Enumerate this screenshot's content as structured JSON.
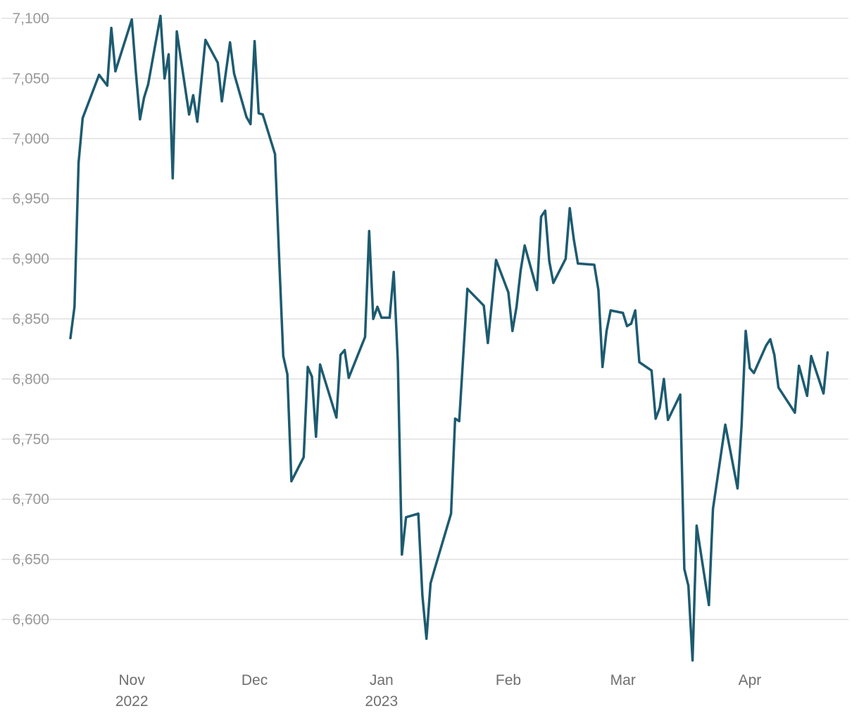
{
  "chart_data": {
    "type": "line",
    "title": "",
    "xlabel": "",
    "ylabel": "",
    "ylim": [
      6565,
      7100
    ],
    "y_ticks": [
      "6,600",
      "6,650",
      "6,700",
      "6,750",
      "6,800",
      "6,850",
      "6,900",
      "6,950",
      "7,000",
      "7,050",
      "7,100"
    ],
    "x_ticks": [
      {
        "date": "2022-11-01",
        "line1": "Nov",
        "line2": "2022"
      },
      {
        "date": "2022-12-01",
        "line1": "Dec",
        "line2": ""
      },
      {
        "date": "2023-01-01",
        "line1": "Jan",
        "line2": "2023"
      },
      {
        "date": "2023-02-01",
        "line1": "Feb",
        "line2": ""
      },
      {
        "date": "2023-03-01",
        "line1": "Mar",
        "line2": ""
      },
      {
        "date": "2023-04-01",
        "line1": "Apr",
        "line2": ""
      }
    ],
    "x_range": [
      "2022-10-17",
      "2023-04-22"
    ],
    "grid": "horizontal",
    "line_color": "#1d5b70",
    "series": [
      {
        "points": [
          [
            "2022-10-17",
            6834
          ],
          [
            "2022-10-18",
            6860
          ],
          [
            "2022-10-19",
            6980
          ],
          [
            "2022-10-20",
            7017
          ],
          [
            "2022-10-24",
            7053
          ],
          [
            "2022-10-26",
            7044
          ],
          [
            "2022-10-27",
            7092
          ],
          [
            "2022-10-28",
            7056
          ],
          [
            "2022-11-01",
            7099
          ],
          [
            "2022-11-02",
            7055
          ],
          [
            "2022-11-03",
            7016
          ],
          [
            "2022-11-04",
            7034
          ],
          [
            "2022-11-05",
            7045
          ],
          [
            "2022-11-08",
            7102
          ],
          [
            "2022-11-09",
            7050
          ],
          [
            "2022-11-10",
            7070
          ],
          [
            "2022-11-11",
            6967
          ],
          [
            "2022-11-12",
            7089
          ],
          [
            "2022-11-15",
            7020
          ],
          [
            "2022-11-16",
            7036
          ],
          [
            "2022-11-17",
            7014
          ],
          [
            "2022-11-19",
            7082
          ],
          [
            "2022-11-22",
            7063
          ],
          [
            "2022-11-23",
            7031
          ],
          [
            "2022-11-25",
            7080
          ],
          [
            "2022-11-26",
            7054
          ],
          [
            "2022-11-29",
            7018
          ],
          [
            "2022-11-30",
            7012
          ],
          [
            "2022-12-01",
            7081
          ],
          [
            "2022-12-02",
            7021
          ],
          [
            "2022-12-03",
            7020
          ],
          [
            "2022-12-06",
            6987
          ],
          [
            "2022-12-07",
            6900
          ],
          [
            "2022-12-08",
            6819
          ],
          [
            "2022-12-09",
            6804
          ],
          [
            "2022-12-10",
            6715
          ],
          [
            "2022-12-13",
            6735
          ],
          [
            "2022-12-14",
            6810
          ],
          [
            "2022-12-15",
            6802
          ],
          [
            "2022-12-16",
            6752
          ],
          [
            "2022-12-17",
            6812
          ],
          [
            "2022-12-21",
            6768
          ],
          [
            "2022-12-22",
            6820
          ],
          [
            "2022-12-23",
            6824
          ],
          [
            "2022-12-24",
            6801
          ],
          [
            "2022-12-28",
            6835
          ],
          [
            "2022-12-29",
            6923
          ],
          [
            "2022-12-30",
            6850
          ],
          [
            "2022-12-31",
            6860
          ],
          [
            "2023-01-01",
            6851
          ],
          [
            "2023-01-03",
            6851
          ],
          [
            "2023-01-04",
            6889
          ],
          [
            "2023-01-05",
            6815
          ],
          [
            "2023-01-06",
            6654
          ],
          [
            "2023-01-07",
            6685
          ],
          [
            "2023-01-10",
            6688
          ],
          [
            "2023-01-11",
            6620
          ],
          [
            "2023-01-12",
            6584
          ],
          [
            "2023-01-13",
            6630
          ],
          [
            "2023-01-14",
            6642
          ],
          [
            "2023-01-18",
            6688
          ],
          [
            "2023-01-19",
            6767
          ],
          [
            "2023-01-20",
            6765
          ],
          [
            "2023-01-22",
            6875
          ],
          [
            "2023-01-26",
            6861
          ],
          [
            "2023-01-27",
            6830
          ],
          [
            "2023-01-29",
            6899
          ],
          [
            "2023-02-01",
            6872
          ],
          [
            "2023-02-02",
            6840
          ],
          [
            "2023-02-03",
            6860
          ],
          [
            "2023-02-04",
            6890
          ],
          [
            "2023-02-05",
            6911
          ],
          [
            "2023-02-08",
            6874
          ],
          [
            "2023-02-09",
            6935
          ],
          [
            "2023-02-10",
            6940
          ],
          [
            "2023-02-11",
            6898
          ],
          [
            "2023-02-12",
            6880
          ],
          [
            "2023-02-15",
            6900
          ],
          [
            "2023-02-16",
            6942
          ],
          [
            "2023-02-17",
            6916
          ],
          [
            "2023-02-18",
            6896
          ],
          [
            "2023-02-22",
            6895
          ],
          [
            "2023-02-23",
            6874
          ],
          [
            "2023-02-24",
            6810
          ],
          [
            "2023-02-25",
            6840
          ],
          [
            "2023-02-26",
            6857
          ],
          [
            "2023-03-01",
            6855
          ],
          [
            "2023-03-02",
            6844
          ],
          [
            "2023-03-03",
            6846
          ],
          [
            "2023-03-04",
            6857
          ],
          [
            "2023-03-05",
            6814
          ],
          [
            "2023-03-08",
            6807
          ],
          [
            "2023-03-09",
            6767
          ],
          [
            "2023-03-10",
            6776
          ],
          [
            "2023-03-11",
            6800
          ],
          [
            "2023-03-12",
            6766
          ],
          [
            "2023-03-15",
            6787
          ],
          [
            "2023-03-16",
            6642
          ],
          [
            "2023-03-17",
            6628
          ],
          [
            "2023-03-18",
            6566
          ],
          [
            "2023-03-19",
            6678
          ],
          [
            "2023-03-22",
            6612
          ],
          [
            "2023-03-23",
            6692
          ],
          [
            "2023-03-26",
            6762
          ],
          [
            "2023-03-29",
            6709
          ],
          [
            "2023-03-30",
            6762
          ],
          [
            "2023-03-31",
            6840
          ],
          [
            "2023-04-01",
            6809
          ],
          [
            "2023-04-02",
            6805
          ],
          [
            "2023-04-05",
            6828
          ],
          [
            "2023-04-06",
            6833
          ],
          [
            "2023-04-07",
            6820
          ],
          [
            "2023-04-08",
            6793
          ],
          [
            "2023-04-12",
            6772
          ],
          [
            "2023-04-13",
            6811
          ],
          [
            "2023-04-15",
            6786
          ],
          [
            "2023-04-16",
            6819
          ],
          [
            "2023-04-19",
            6788
          ],
          [
            "2023-04-20",
            6822
          ]
        ]
      }
    ]
  }
}
